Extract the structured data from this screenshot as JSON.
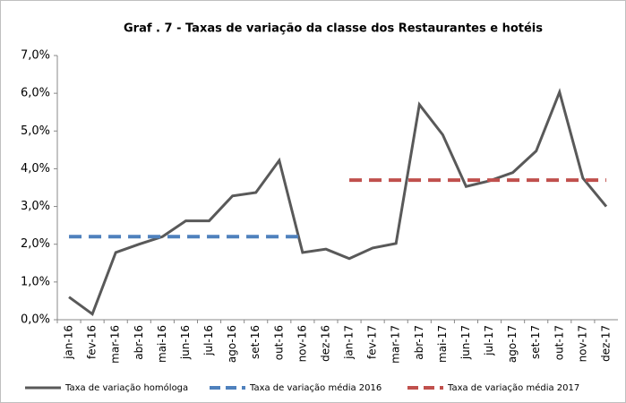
{
  "chart_data": {
    "type": "line",
    "title": "Graf . 7 - Taxas de variação da classe dos Restaurantes e hotéis",
    "categories": [
      "jan-16",
      "fev-16",
      "mar-16",
      "abr-16",
      "mai-16",
      "jun-16",
      "jul-16",
      "ago-16",
      "set-16",
      "out-16",
      "nov-16",
      "dez-16",
      "jan-17",
      "fev-17",
      "mar-17",
      "abr-17",
      "mai-17",
      "jun-17",
      "jul-17",
      "ago-17",
      "set-17",
      "out-17",
      "nov-17",
      "dez-17"
    ],
    "series": [
      {
        "name": "Taxa de variação homóloga",
        "color": "#595959",
        "dash": false,
        "values": [
          0.6,
          0.15,
          1.78,
          2.0,
          2.2,
          2.62,
          2.62,
          3.28,
          3.37,
          4.22,
          1.78,
          1.87,
          1.62,
          1.9,
          2.02,
          5.7,
          4.9,
          3.53,
          3.68,
          3.9,
          4.47,
          6.03,
          3.75,
          3.0
        ]
      },
      {
        "name": "Taxa de variação média 2016",
        "color": "#4f81bd",
        "dash": true,
        "values": [
          2.2,
          2.2,
          2.2,
          2.2,
          2.2,
          2.2,
          2.2,
          2.2,
          2.2,
          2.2,
          2.2,
          null,
          null,
          null,
          null,
          null,
          null,
          null,
          null,
          null,
          null,
          null,
          null,
          null
        ]
      },
      {
        "name": "Taxa de variação média 2017",
        "color": "#c0504d",
        "dash": true,
        "values": [
          null,
          null,
          null,
          null,
          null,
          null,
          null,
          null,
          null,
          null,
          null,
          null,
          3.7,
          3.7,
          3.7,
          3.7,
          3.7,
          3.7,
          3.7,
          3.7,
          3.7,
          3.7,
          3.7,
          3.7
        ]
      }
    ],
    "ylim": [
      0,
      7
    ],
    "yticks": [
      {
        "value": 0,
        "label": "0,0%"
      },
      {
        "value": 1,
        "label": "1,0%"
      },
      {
        "value": 2,
        "label": "2,0%"
      },
      {
        "value": 3,
        "label": "3,0%"
      },
      {
        "value": 4,
        "label": "4,0%"
      },
      {
        "value": 5,
        "label": "5,0%"
      },
      {
        "value": 6,
        "label": "6,0%"
      },
      {
        "value": 7,
        "label": "7,0%"
      }
    ],
    "grid": false,
    "legend": "bottom"
  }
}
